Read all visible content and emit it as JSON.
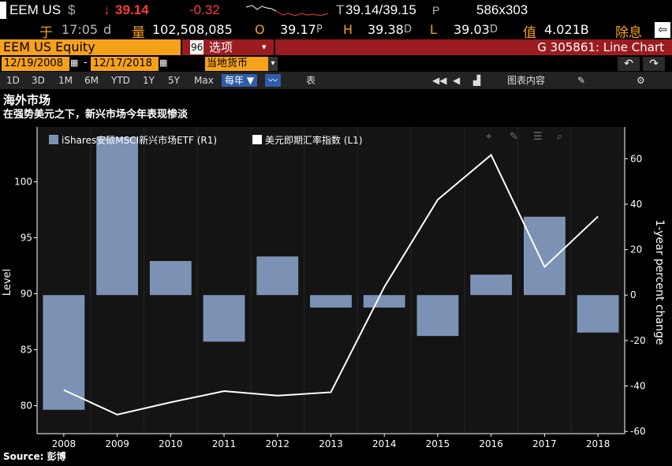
{
  "ticker": {
    "symbol": "EEM US",
    "currency_symbol": "$",
    "arrow": "↓",
    "last_price": "39.14",
    "change": "-0.32",
    "bid_ask_prefix": "T",
    "bid_ask": "39.14/39.15",
    "bid_ask_suffix": "P",
    "size": "586x303"
  },
  "quote": {
    "at_label": "于",
    "time": "17:05",
    "time_suffix": "d",
    "volume_label": "量",
    "volume": "102,508,085",
    "open_label": "O",
    "open": "39.17",
    "open_suffix": "P",
    "high_label": "H",
    "high": "39.38",
    "high_suffix": "D",
    "low_label": "L",
    "low": "39.03",
    "low_suffix": "D",
    "value_label": "值",
    "value": "4.021B",
    "dividend_label": "除息"
  },
  "security": {
    "name": "EEM US Equity",
    "menu_number": "96",
    "menu_label": "选项",
    "function_label": "G 305861: Line Chart"
  },
  "dates": {
    "start": "12/19/2008",
    "end": "12/17/2018",
    "currency": "当地货币"
  },
  "toolbar": {
    "periods": [
      "1D",
      "3D",
      "1M",
      "6M",
      "YTD",
      "1Y",
      "5Y",
      "Max"
    ],
    "frequency": "每年",
    "table_label": "表",
    "chart_content_label": "图表内容"
  },
  "colors": {
    "bar": "#7b92b4",
    "line": "#ffffff",
    "accent_orange": "#f6a11a",
    "header_red": "#9b1c20"
  },
  "icons": [
    "calendar-icon",
    "line-chart-icon",
    "rewind-icon",
    "chart-content-icon",
    "edit-icon",
    "gear-icon",
    "undo-icon",
    "redo-icon",
    "crosshair-icon",
    "pencil-icon",
    "list-icon",
    "zoom-icon"
  ],
  "chart_data": {
    "type": "bar",
    "title": "海外市场",
    "subtitle": "在强势美元之下，新兴市场今年表现惨淡",
    "source": "Source: 彭博",
    "categories": [
      "2008",
      "2009",
      "2010",
      "2011",
      "2012",
      "2013",
      "2014",
      "2015",
      "2016",
      "2017",
      "2018"
    ],
    "series": [
      {
        "name": "iShares安硕MSCI新兴市场ETF (R1)",
        "type": "bar",
        "axis": "right",
        "values": [
          -50.5,
          69.5,
          15,
          -20.5,
          17,
          -5.5,
          -5.5,
          -18,
          9,
          34.5,
          -16.5
        ]
      },
      {
        "name": "美元即期汇率指数 (L1)",
        "type": "line",
        "axis": "left",
        "values": [
          81.4,
          79.2,
          80.3,
          81.3,
          80.9,
          81.2,
          90.6,
          98.4,
          102.4,
          92.4,
          96.9
        ]
      }
    ],
    "left_axis": {
      "label": "Level",
      "ticks": [
        80,
        85,
        90,
        95,
        100
      ],
      "range": [
        77.5,
        104.9
      ]
    },
    "right_axis": {
      "label": "1-year percent change",
      "ticks": [
        -60,
        -40,
        -20,
        0,
        20,
        40,
        60
      ],
      "range": [
        -61,
        74
      ]
    },
    "legend_position": "top-left"
  }
}
